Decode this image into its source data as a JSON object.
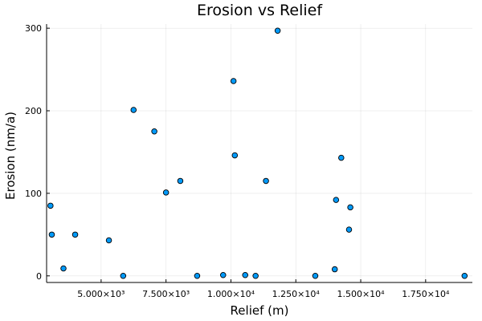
{
  "chart_data": {
    "type": "scatter",
    "title": "Erosion vs Relief",
    "xlabel": "Relief (m)",
    "ylabel": "Erosion (nm/a)",
    "xlim": [
      2900,
      19300
    ],
    "ylim": [
      -8,
      305
    ],
    "xticks": [
      {
        "value": 5000,
        "label": "5.000×10³"
      },
      {
        "value": 7500,
        "label": "7.500×10³"
      },
      {
        "value": 10000,
        "label": "1.000×10⁴"
      },
      {
        "value": 12500,
        "label": "1.250×10⁴"
      },
      {
        "value": 15000,
        "label": "1.500×10⁴"
      },
      {
        "value": 17500,
        "label": "1.750×10⁴"
      }
    ],
    "yticks": [
      {
        "value": 0,
        "label": "0"
      },
      {
        "value": 100,
        "label": "100"
      },
      {
        "value": 200,
        "label": "200"
      },
      {
        "value": 300,
        "label": "300"
      }
    ],
    "grid": true,
    "legend": "none",
    "marker_color": "#009AFA",
    "series": [
      {
        "x": [
          3050,
          3100,
          3550,
          4000,
          5300,
          5850,
          6250,
          7050,
          7500,
          8050,
          8700,
          9700,
          10100,
          10150,
          10550,
          10950,
          11350,
          11800,
          13250,
          14000,
          14050,
          14250,
          14550,
          14600,
          19000
        ],
        "y": [
          85,
          50,
          9,
          50,
          43,
          0,
          201,
          175,
          101,
          115,
          0,
          1,
          236,
          146,
          1,
          0,
          115,
          297,
          0,
          8,
          92,
          143,
          56,
          83,
          0
        ]
      }
    ]
  }
}
